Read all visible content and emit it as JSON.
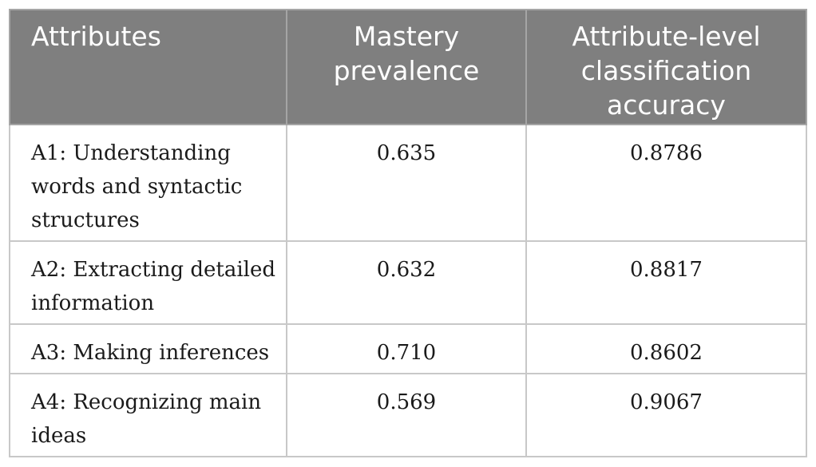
{
  "table": {
    "headers": [
      "Attributes",
      "Mastery prevalence",
      "Attribute-level classification accuracy"
    ],
    "rows": [
      {
        "attribute": "A1: Understanding words and syntactic structures",
        "prevalence": "0.635",
        "accuracy": "0.8786"
      },
      {
        "attribute": "A2: Extracting detailed information",
        "prevalence": "0.632",
        "accuracy": "0.8817"
      },
      {
        "attribute": "A3: Making inferences",
        "prevalence": "0.710",
        "accuracy": "0.8602"
      },
      {
        "attribute": "A4: Recognizing main ideas",
        "prevalence": "0.569",
        "accuracy": "0.9067"
      }
    ]
  },
  "colors": {
    "header_bg": "#7f7f7f",
    "header_text": "#ffffff",
    "border": "#c8c8c8"
  }
}
